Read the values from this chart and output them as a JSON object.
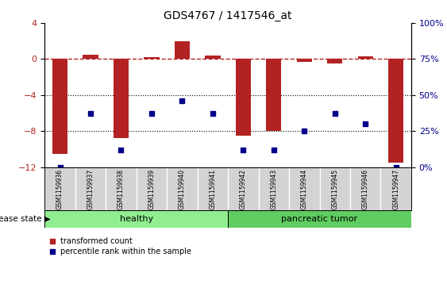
{
  "title": "GDS4767 / 1417546_at",
  "samples": [
    "GSM1159936",
    "GSM1159937",
    "GSM1159938",
    "GSM1159939",
    "GSM1159940",
    "GSM1159941",
    "GSM1159942",
    "GSM1159943",
    "GSM1159944",
    "GSM1159945",
    "GSM1159946",
    "GSM1159947"
  ],
  "transformed_counts": [
    -10.5,
    0.5,
    -8.8,
    0.2,
    2.0,
    0.4,
    -8.5,
    -8.0,
    -0.3,
    -0.5,
    0.3,
    -11.5
  ],
  "percentile_ranks": [
    0,
    37,
    12,
    37,
    46,
    37,
    12,
    12,
    25,
    37,
    30,
    0
  ],
  "bar_color": "#b22222",
  "dot_color": "#00008b",
  "left_ylim": [
    -12,
    4
  ],
  "right_ylim": [
    0,
    100
  ],
  "left_yticks": [
    -12,
    -8,
    -4,
    0,
    4
  ],
  "right_yticks": [
    0,
    25,
    50,
    75,
    100
  ],
  "hline_y": 0,
  "dotted_lines": [
    -4,
    -8
  ],
  "healthy_count": 6,
  "tumor_count": 6,
  "healthy_label": "healthy",
  "tumor_label": "pancreatic tumor",
  "disease_state_label": "disease state",
  "legend_red": "transformed count",
  "legend_blue": "percentile rank within the sample",
  "healthy_color": "#90ee90",
  "tumor_color": "#5fcd5f",
  "tick_label_fontsize": 6,
  "bar_width": 0.5
}
